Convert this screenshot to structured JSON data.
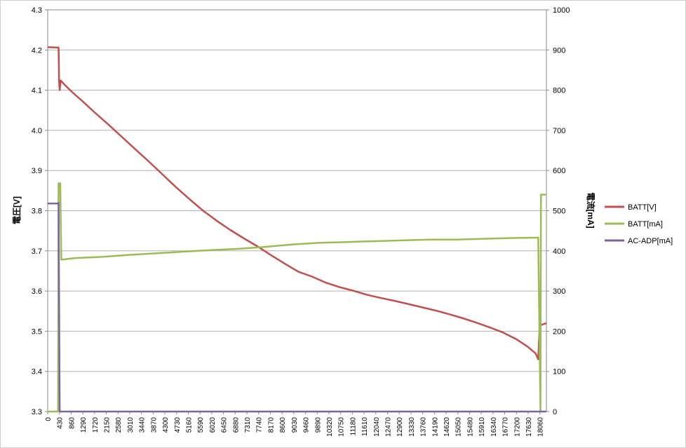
{
  "chart_data": {
    "type": "line",
    "title": "",
    "ylabel_left": "電圧[V]",
    "ylabel_right": "電流[mA]",
    "xlim": [
      0,
      18300
    ],
    "ylim_left": [
      3.3,
      4.3
    ],
    "ylim_right": [
      0,
      1000
    ],
    "yticks_left": [
      "3.3",
      "3.4",
      "3.5",
      "3.6",
      "3.7",
      "3.8",
      "3.9",
      "4.0",
      "4.1",
      "4.2",
      "4.3"
    ],
    "yticks_right": [
      "0",
      "100",
      "200",
      "300",
      "400",
      "500",
      "600",
      "700",
      "800",
      "900",
      "1000"
    ],
    "xticks": [
      "0",
      "430",
      "860",
      "1290",
      "1720",
      "2150",
      "2580",
      "3010",
      "3440",
      "3870",
      "4300",
      "4730",
      "5160",
      "5590",
      "6020",
      "6450",
      "6880",
      "7310",
      "7740",
      "8170",
      "8600",
      "9030",
      "9460",
      "9890",
      "10320",
      "10750",
      "11180",
      "11610",
      "12040",
      "12470",
      "12900",
      "13330",
      "13760",
      "14190",
      "14620",
      "15050",
      "15480",
      "15910",
      "16340",
      "16770",
      "17200",
      "17630",
      "18060"
    ],
    "grid": "horizontal",
    "legend_position": "right",
    "series": [
      {
        "name": "BATT[V]",
        "axis": "left",
        "color": "#c0504d",
        "x": [
          0,
          400,
          420,
          440,
          480,
          600,
          900,
          1300,
          1700,
          2200,
          2700,
          3200,
          3700,
          4200,
          4700,
          5200,
          5700,
          6200,
          6700,
          7200,
          7700,
          8200,
          8700,
          9200,
          9700,
          10200,
          10700,
          11200,
          11700,
          12200,
          12700,
          13200,
          13700,
          14200,
          14700,
          15200,
          15700,
          16200,
          16700,
          17200,
          17600,
          17900,
          18000,
          18050,
          18080,
          18300
        ],
        "y": [
          4.207,
          4.206,
          4.12,
          4.1,
          4.124,
          4.115,
          4.095,
          4.071,
          4.046,
          4.016,
          3.985,
          3.954,
          3.923,
          3.891,
          3.859,
          3.829,
          3.8,
          3.775,
          3.752,
          3.731,
          3.711,
          3.689,
          3.668,
          3.648,
          3.636,
          3.621,
          3.61,
          3.601,
          3.591,
          3.583,
          3.576,
          3.568,
          3.56,
          3.552,
          3.543,
          3.533,
          3.522,
          3.51,
          3.497,
          3.48,
          3.462,
          3.445,
          3.43,
          3.51,
          3.515,
          3.52
        ]
      },
      {
        "name": "BATT[mA]",
        "axis": "right",
        "color": "#9bbb59",
        "x": [
          0,
          380,
          400,
          460,
          500,
          1000,
          2000,
          3000,
          4000,
          5000,
          6000,
          7000,
          8000,
          9000,
          10000,
          11000,
          12000,
          13000,
          14000,
          15000,
          16000,
          17000,
          18000,
          18080,
          18100,
          18300
        ],
        "y": [
          0,
          0,
          568,
          568,
          378,
          382,
          385,
          390,
          394,
          398,
          402,
          405,
          410,
          416,
          420,
          422,
          424,
          426,
          428,
          428,
          430,
          432,
          433,
          0,
          540,
          540
        ]
      },
      {
        "name": "AC-ADP[mA]",
        "axis": "right",
        "color": "#8064a2",
        "x": [
          0,
          380,
          400,
          440,
          460,
          18300
        ],
        "y": [
          518,
          518,
          520,
          0,
          0,
          0
        ]
      }
    ]
  }
}
